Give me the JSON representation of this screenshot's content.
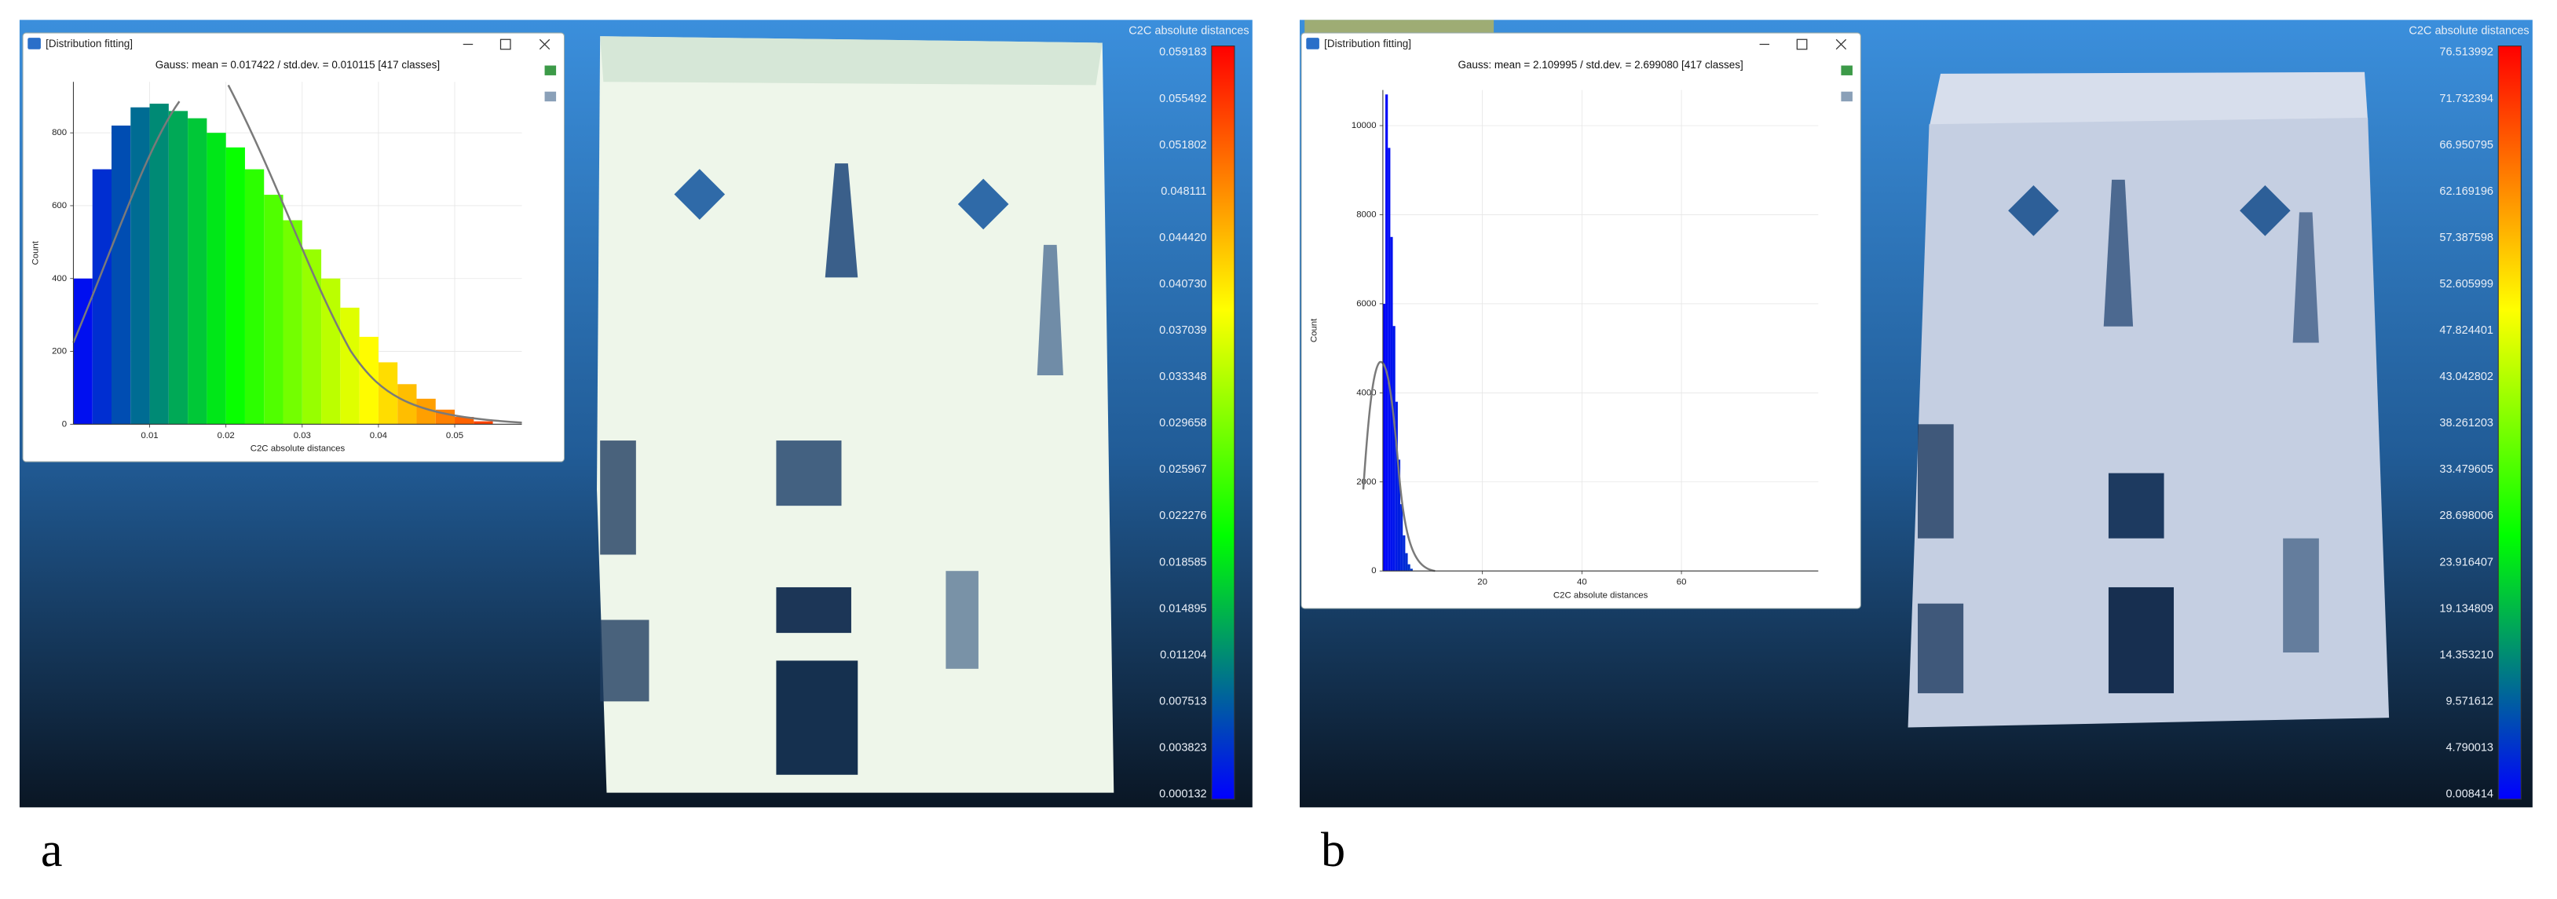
{
  "panels": [
    {
      "label": "a",
      "dialog": {
        "title": "[Distribution fitting]",
        "gauss": "Gauss: mean = 0.017422 / std.dev. = 0.010115 [417 classes]",
        "histogram": {
          "x_label": "C2C absolute distances",
          "y_label": "Count",
          "xlim": [
            0,
            0.0588
          ],
          "ylim": [
            0,
            940
          ],
          "xticks": [
            0.01,
            0.02,
            0.03,
            0.04,
            0.05
          ],
          "yticks": [
            0,
            200,
            400,
            600,
            800
          ],
          "bins": [
            0,
            0.0025,
            0.005,
            0.0075,
            0.01,
            0.0125,
            0.015,
            0.0175,
            0.02,
            0.0225,
            0.025,
            0.0275,
            0.03,
            0.0325,
            0.035,
            0.0375,
            0.04,
            0.0425,
            0.045,
            0.0475,
            0.05,
            0.0525,
            0.055
          ],
          "counts": [
            400,
            700,
            820,
            870,
            880,
            860,
            840,
            800,
            760,
            700,
            630,
            560,
            480,
            400,
            320,
            240,
            170,
            110,
            70,
            40,
            20,
            8
          ]
        }
      },
      "scale": {
        "title": "C2C absolute distances",
        "labels": [
          "0.059183",
          "0.055492",
          "0.051802",
          "0.048111",
          "0.044420",
          "0.040730",
          "0.037039",
          "0.033348",
          "0.029658",
          "0.025967",
          "0.022276",
          "0.018585",
          "0.014895",
          "0.011204",
          "0.007513",
          "0.003823",
          "0.000132"
        ]
      }
    },
    {
      "label": "b",
      "dialog": {
        "title": "[Distribution fitting]",
        "gauss": "Gauss: mean = 2.109995 / std.dev. = 2.699080 [417 classes]",
        "histogram": {
          "x_label": "C2C absolute distances",
          "y_label": "Count",
          "xlim": [
            0,
            87.5
          ],
          "ylim": [
            0,
            10800
          ],
          "xticks": [
            20,
            40,
            60
          ],
          "yticks": [
            0,
            2000,
            4000,
            6000,
            8000,
            10000
          ],
          "bins": [
            0,
            0.5,
            1,
            1.5,
            2,
            2.5,
            3,
            3.5,
            4,
            4.5,
            5,
            5.5,
            6
          ],
          "counts": [
            6000,
            10700,
            9500,
            7500,
            5500,
            3800,
            2500,
            1500,
            800,
            400,
            150,
            50
          ]
        }
      },
      "scale": {
        "title": "C2C absolute distances",
        "labels": [
          "76.513992",
          "71.732394",
          "66.950795",
          "62.169196",
          "57.387598",
          "52.605999",
          "47.824401",
          "43.042802",
          "38.261203",
          "33.479605",
          "28.698006",
          "23.916407",
          "19.134809",
          "14.353210",
          "9.571612",
          "4.790013",
          "0.008414"
        ]
      }
    }
  ]
}
